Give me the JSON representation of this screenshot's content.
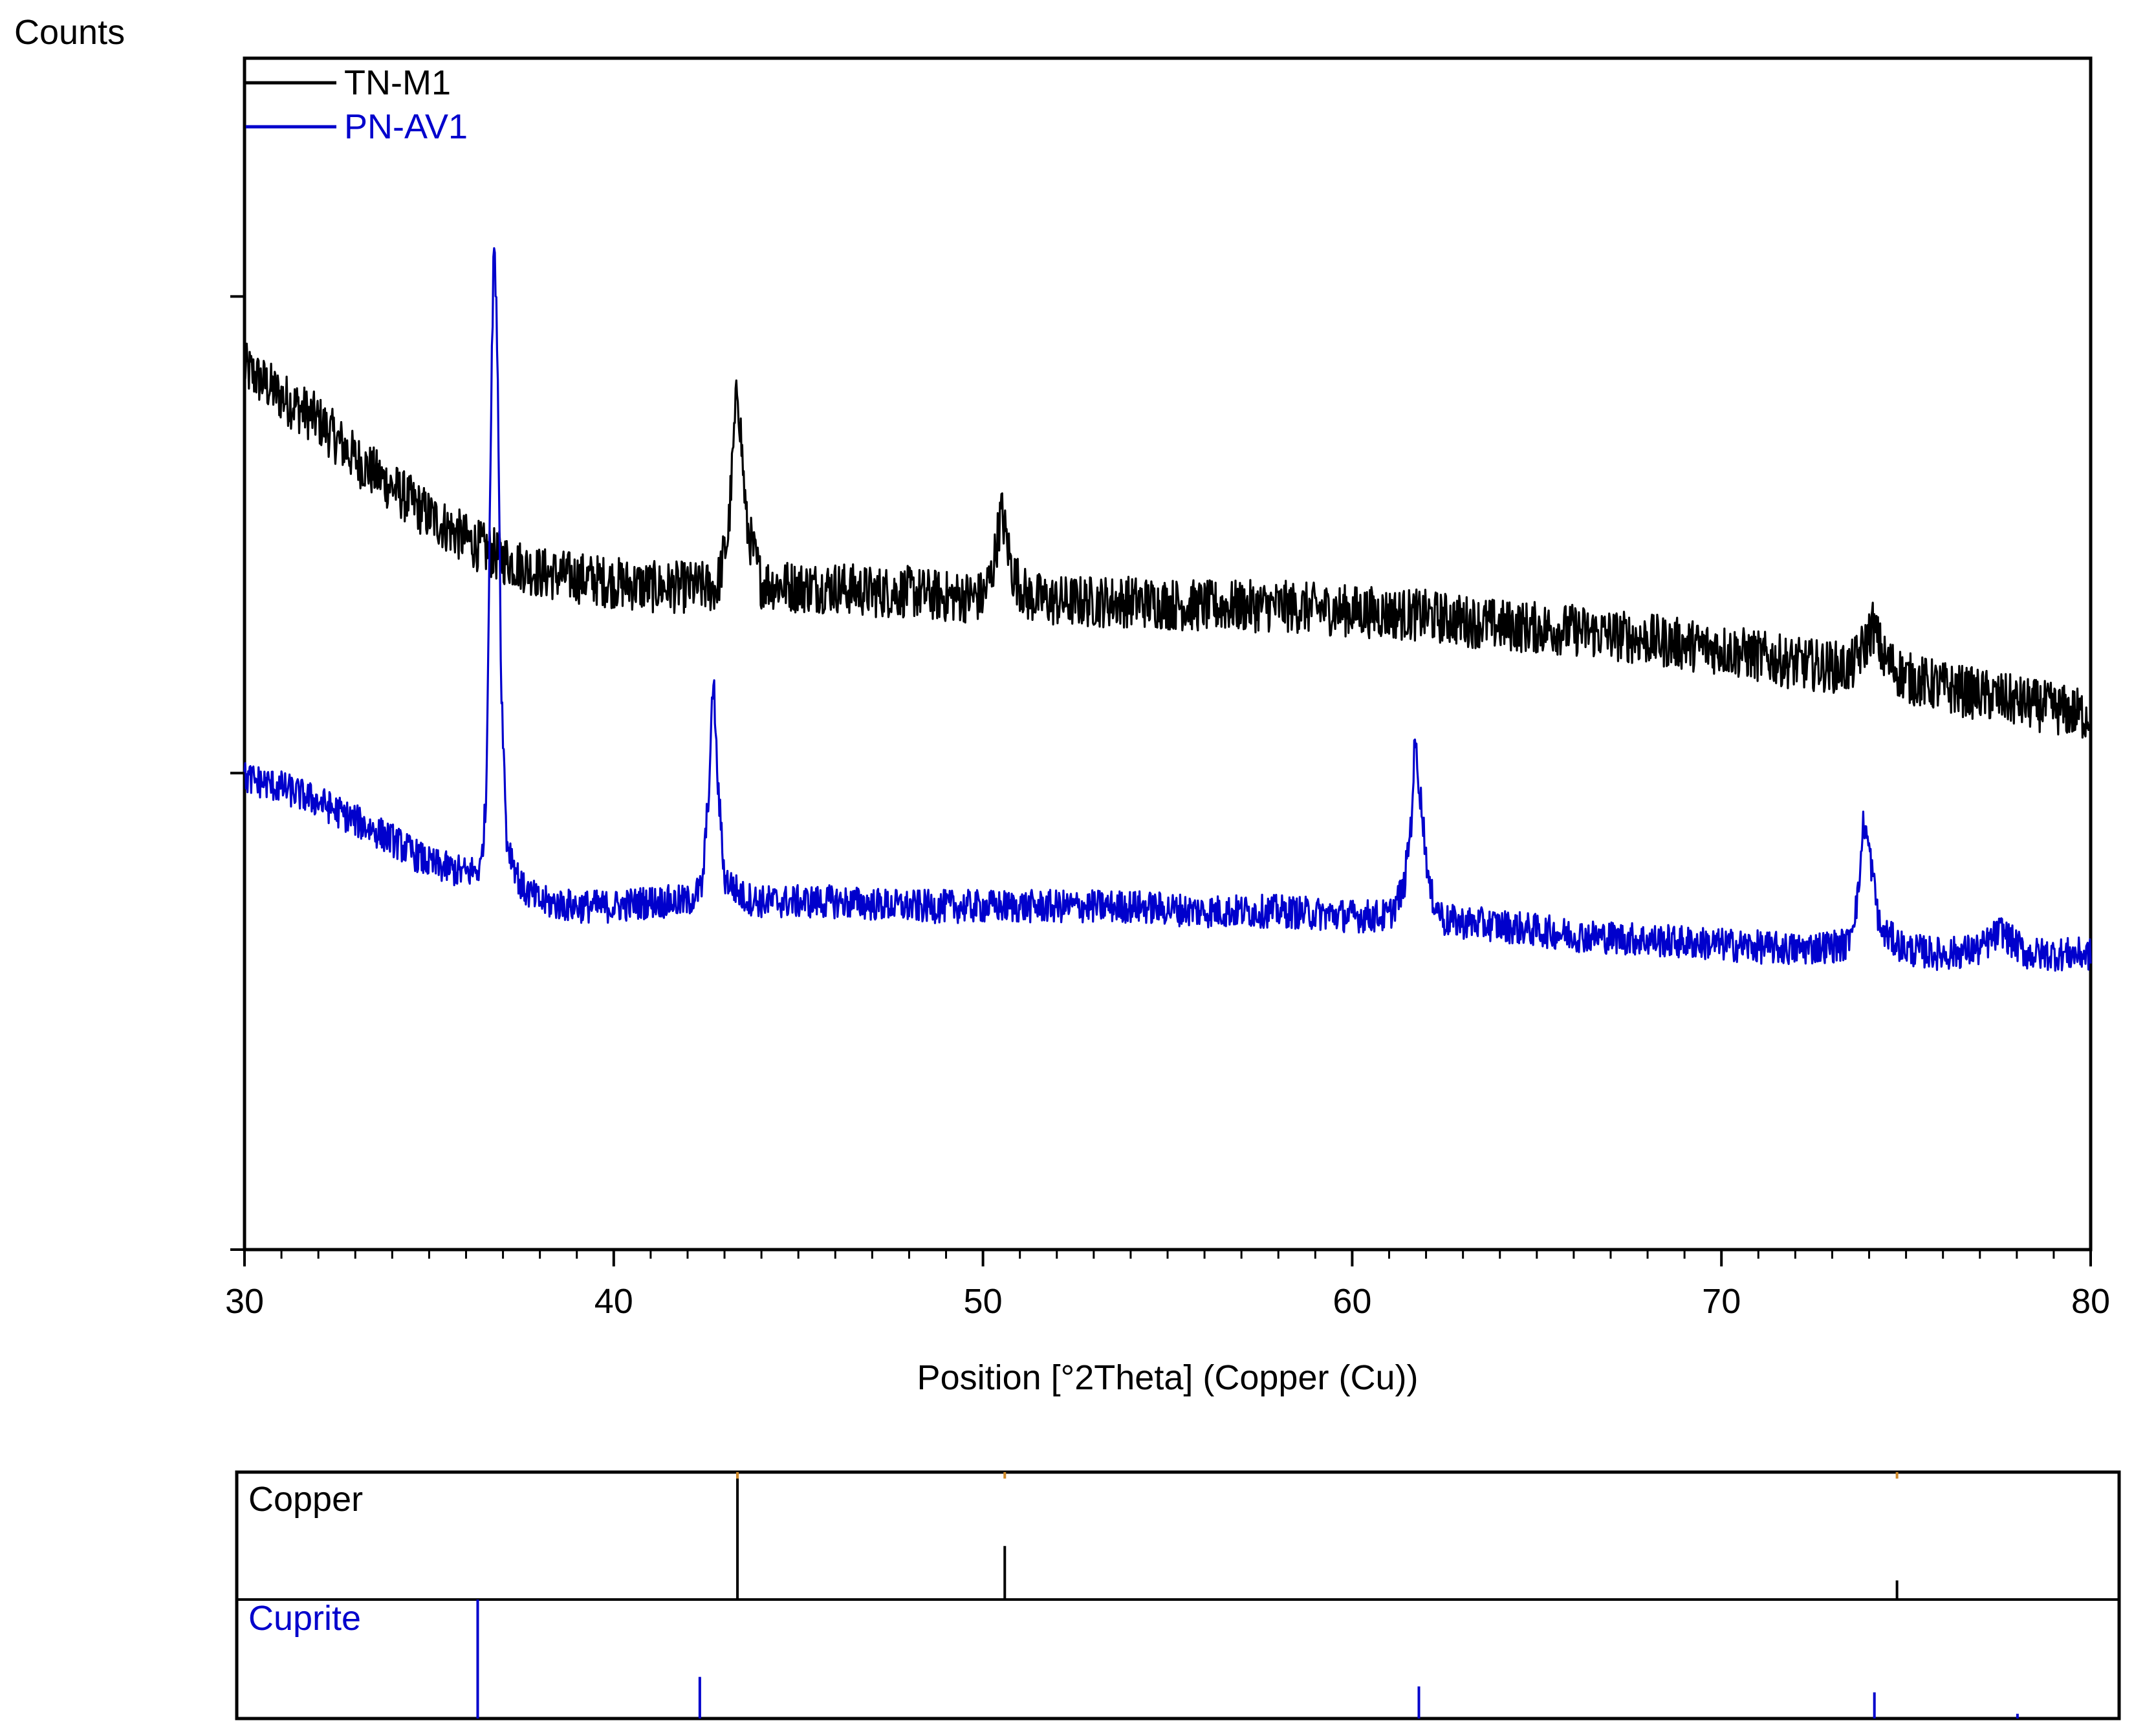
{
  "chart_data": [
    {
      "type": "line",
      "title": "",
      "ylabel": "Counts",
      "xlabel": "Position [°2Theta] (Copper (Cu))",
      "xlim": [
        30,
        80
      ],
      "ylim": [
        0,
        2.5
      ],
      "grid": false,
      "legend": "top-left",
      "x_ticks": [
        30,
        40,
        50,
        60,
        70,
        80
      ],
      "series": [
        {
          "name": "TN-M1",
          "color": "#000000",
          "points": [
            [
              30,
              1.85
            ],
            [
              31,
              1.79
            ],
            [
              32,
              1.74
            ],
            [
              33,
              1.66
            ],
            [
              34,
              1.6
            ],
            [
              35,
              1.54
            ],
            [
              36,
              1.49
            ],
            [
              37,
              1.45
            ],
            [
              38,
              1.42
            ],
            [
              39,
              1.41
            ],
            [
              40,
              1.4
            ],
            [
              41,
              1.39
            ],
            [
              42,
              1.39
            ],
            [
              42.8,
              1.39
            ],
            [
              43.1,
              1.5
            ],
            [
              43.35,
              1.82
            ],
            [
              43.6,
              1.52
            ],
            [
              44,
              1.4
            ],
            [
              45,
              1.39
            ],
            [
              46,
              1.39
            ],
            [
              47,
              1.38
            ],
            [
              48,
              1.38
            ],
            [
              49,
              1.37
            ],
            [
              50,
              1.37
            ],
            [
              50.25,
              1.42
            ],
            [
              50.5,
              1.55
            ],
            [
              50.8,
              1.42
            ],
            [
              51.2,
              1.37
            ],
            [
              52,
              1.36
            ],
            [
              54,
              1.36
            ],
            [
              56,
              1.35
            ],
            [
              58,
              1.35
            ],
            [
              60,
              1.34
            ],
            [
              62,
              1.33
            ],
            [
              64,
              1.31
            ],
            [
              66,
              1.3
            ],
            [
              68,
              1.28
            ],
            [
              70,
              1.26
            ],
            [
              72,
              1.23
            ],
            [
              73.5,
              1.22
            ],
            [
              73.9,
              1.27
            ],
            [
              74.1,
              1.31
            ],
            [
              74.4,
              1.24
            ],
            [
              75,
              1.2
            ],
            [
              76,
              1.18
            ],
            [
              78,
              1.15
            ],
            [
              80,
              1.12
            ]
          ]
        },
        {
          "name": "PN-AV1",
          "color": "#0000cc",
          "points": [
            [
              30,
              0.99
            ],
            [
              31,
              0.97
            ],
            [
              32,
              0.94
            ],
            [
              33,
              0.9
            ],
            [
              34,
              0.86
            ],
            [
              35,
              0.81
            ],
            [
              36,
              0.79
            ],
            [
              36.4,
              0.8
            ],
            [
              36.55,
              0.95
            ],
            [
              36.65,
              1.6
            ],
            [
              36.75,
              2.13
            ],
            [
              36.85,
              1.9
            ],
            [
              36.95,
              1.2
            ],
            [
              37.1,
              0.86
            ],
            [
              37.5,
              0.76
            ],
            [
              38,
              0.73
            ],
            [
              39,
              0.72
            ],
            [
              40,
              0.72
            ],
            [
              41,
              0.73
            ],
            [
              42,
              0.73
            ],
            [
              42.4,
              0.76
            ],
            [
              42.6,
              1.0
            ],
            [
              42.7,
              1.21
            ],
            [
              42.8,
              1.0
            ],
            [
              43,
              0.78
            ],
            [
              43.5,
              0.74
            ],
            [
              44,
              0.73
            ],
            [
              46,
              0.73
            ],
            [
              48,
              0.72
            ],
            [
              50,
              0.72
            ],
            [
              52,
              0.72
            ],
            [
              54,
              0.72
            ],
            [
              56,
              0.71
            ],
            [
              58,
              0.71
            ],
            [
              60,
              0.7
            ],
            [
              61,
              0.7
            ],
            [
              61.4,
              0.76
            ],
            [
              61.6,
              0.9
            ],
            [
              61.7,
              1.07
            ],
            [
              61.85,
              0.95
            ],
            [
              62.1,
              0.75
            ],
            [
              62.5,
              0.69
            ],
            [
              64,
              0.68
            ],
            [
              66,
              0.66
            ],
            [
              68,
              0.65
            ],
            [
              70,
              0.64
            ],
            [
              72,
              0.63
            ],
            [
              73.4,
              0.64
            ],
            [
              73.7,
              0.74
            ],
            [
              73.85,
              0.9
            ],
            [
              74.0,
              0.84
            ],
            [
              74.3,
              0.67
            ],
            [
              75,
              0.63
            ],
            [
              76,
              0.62
            ],
            [
              77,
              0.63
            ],
            [
              77.6,
              0.67
            ],
            [
              77.8,
              0.65
            ],
            [
              78.3,
              0.62
            ],
            [
              79,
              0.62
            ],
            [
              80,
              0.62
            ]
          ]
        }
      ]
    },
    {
      "type": "bar",
      "title": "",
      "xlim": [
        30,
        80
      ],
      "xlabel": "",
      "ylabel": "",
      "grid": false,
      "panels": [
        {
          "name": "Copper",
          "color": "#000000",
          "tick_color": "#d08a2a",
          "x": [
            43.3,
            50.4,
            74.1
          ],
          "values": [
            100,
            42,
            15
          ]
        },
        {
          "name": "Cuprite",
          "color": "#0000cc",
          "x": [
            36.4,
            42.3,
            61.4,
            73.5,
            77.3
          ],
          "values": [
            100,
            35,
            27,
            22,
            4
          ]
        }
      ]
    }
  ]
}
